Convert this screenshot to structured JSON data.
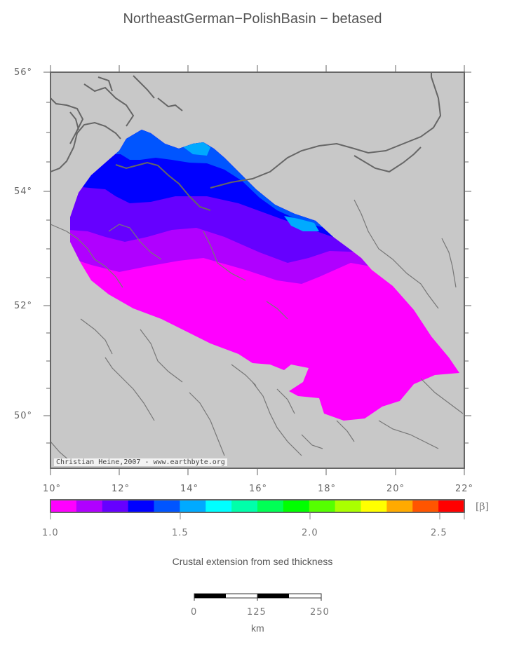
{
  "title": "NortheastGerman−PolishBasin − betased",
  "map": {
    "lat_ticks": [
      "56°",
      "54°",
      "52°",
      "50°"
    ],
    "lon_ticks": [
      "10°",
      "12°",
      "14°",
      "16°",
      "18°",
      "20°",
      "22°"
    ],
    "credit": "Christian Heine,2007 - www.earthbyte.org",
    "background_color": "#c8c8c8",
    "coastline_color": "#666666",
    "river_color": "#777777",
    "frame_color": "#666666"
  },
  "colorbar": {
    "colors": [
      "#ff00ff",
      "#b000ff",
      "#6600ff",
      "#0000ff",
      "#0055ff",
      "#00aaff",
      "#00ffff",
      "#00ffaa",
      "#00ff55",
      "#00ff00",
      "#55ff00",
      "#aaff00",
      "#ffff00",
      "#ffaa00",
      "#ff5500",
      "#ff0000"
    ],
    "labels": [
      "1.0",
      "1.5",
      "2.0",
      "2.5"
    ],
    "unit": "[β]"
  },
  "caption": "Crustal extension from sed thickness",
  "scale_bar": {
    "labels": [
      "0",
      "125",
      "250"
    ],
    "unit": "km"
  }
}
